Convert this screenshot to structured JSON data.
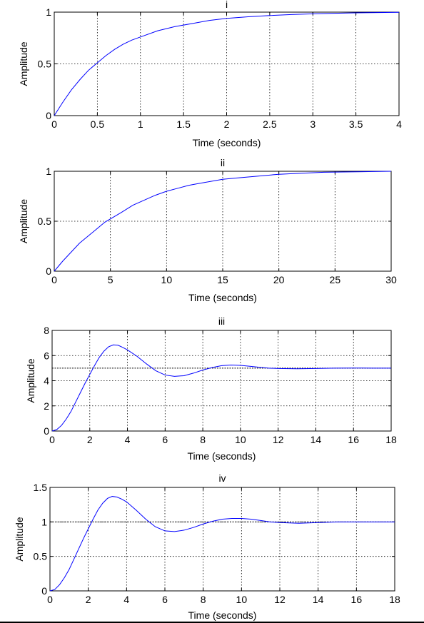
{
  "colors": {
    "curve": "#0000ff",
    "axes": "#000000",
    "grid": "#000000",
    "background": "#ffffff"
  },
  "chart_data": [
    {
      "type": "line",
      "title": "i",
      "xlabel": "Time (seconds)",
      "ylabel": "Amplitude",
      "xlim": [
        0,
        4
      ],
      "ylim": [
        0,
        1
      ],
      "xticks": [
        0,
        0.5,
        1,
        1.5,
        2,
        2.5,
        3,
        3.5,
        4
      ],
      "xtick_labels": [
        "0",
        "0.5",
        "1",
        "1.5",
        "2",
        "2.5",
        "3",
        "3.5",
        "4"
      ],
      "yticks": [
        0,
        0.5,
        1
      ],
      "ytick_labels": [
        "0",
        "0.5",
        "1"
      ],
      "grid": true,
      "series": [
        {
          "x": [
            0,
            0.1,
            0.2,
            0.3,
            0.4,
            0.5,
            0.6,
            0.7,
            0.8,
            0.9,
            1.0,
            1.2,
            1.4,
            1.6,
            1.8,
            2.0,
            2.25,
            2.5,
            2.75,
            3.0,
            3.25,
            3.5,
            3.75,
            4.0
          ],
          "y": [
            0,
            0.13,
            0.25,
            0.35,
            0.44,
            0.51,
            0.58,
            0.64,
            0.69,
            0.73,
            0.76,
            0.82,
            0.86,
            0.89,
            0.92,
            0.94,
            0.955,
            0.967,
            0.977,
            0.984,
            0.989,
            0.993,
            0.996,
            0.998
          ]
        }
      ]
    },
    {
      "type": "line",
      "title": "ii",
      "xlabel": "Time (seconds)",
      "ylabel": "Amplitude",
      "xlim": [
        0,
        30
      ],
      "ylim": [
        0,
        1
      ],
      "xticks": [
        0,
        5,
        10,
        15,
        20,
        25,
        30
      ],
      "xtick_labels": [
        "0",
        "5",
        "10",
        "15",
        "20",
        "25",
        "30"
      ],
      "yticks": [
        0,
        0.5,
        1
      ],
      "ytick_labels": [
        "0",
        "0.5",
        "1"
      ],
      "grid": true,
      "series": [
        {
          "x": [
            0,
            0.75,
            1.5,
            2.25,
            3,
            3.75,
            4.5,
            5.25,
            6,
            7,
            8,
            9,
            10,
            11,
            12,
            13,
            14,
            15,
            16,
            18,
            20,
            22,
            24,
            30
          ],
          "y": [
            0,
            0.1,
            0.19,
            0.28,
            0.35,
            0.42,
            0.49,
            0.54,
            0.59,
            0.66,
            0.71,
            0.76,
            0.8,
            0.83,
            0.86,
            0.88,
            0.9,
            0.92,
            0.93,
            0.95,
            0.97,
            0.98,
            0.99,
            1.0
          ]
        }
      ]
    },
    {
      "type": "line",
      "title": "iii",
      "xlabel": "Time (seconds)",
      "ylabel": "Amplitude",
      "xlim": [
        0,
        18
      ],
      "ylim": [
        0,
        8
      ],
      "xticks": [
        0,
        2,
        4,
        6,
        8,
        10,
        12,
        14,
        16,
        18
      ],
      "xtick_labels": [
        "0",
        "2",
        "4",
        "6",
        "8",
        "10",
        "12",
        "14",
        "16",
        "18"
      ],
      "yticks": [
        0,
        2,
        4,
        6,
        8
      ],
      "ytick_labels": [
        "0",
        "2",
        "4",
        "6",
        "8"
      ],
      "grid": true,
      "reference_line": 5,
      "series": [
        {
          "x": [
            0,
            0.25,
            0.5,
            0.75,
            1.0,
            1.25,
            1.5,
            1.75,
            2.0,
            2.25,
            2.5,
            2.75,
            3.0,
            3.25,
            3.5,
            3.75,
            4.0,
            4.5,
            5.0,
            5.5,
            6.0,
            6.5,
            7.0,
            7.5,
            8.0,
            8.5,
            9.0,
            9.5,
            10.0,
            10.5,
            11.0,
            11.5,
            12.0,
            13.0,
            14.0,
            15.0,
            16.0,
            17.0,
            18.0
          ],
          "y": [
            0,
            0.12,
            0.45,
            0.95,
            1.55,
            2.3,
            3.05,
            3.8,
            4.5,
            5.2,
            5.85,
            6.35,
            6.7,
            6.85,
            6.82,
            6.65,
            6.45,
            5.95,
            5.35,
            4.8,
            4.45,
            4.35,
            4.4,
            4.6,
            4.85,
            5.05,
            5.2,
            5.25,
            5.22,
            5.15,
            5.07,
            5.0,
            4.97,
            4.95,
            4.97,
            5.0,
            5.01,
            5.0,
            5.0
          ]
        }
      ]
    },
    {
      "type": "line",
      "title": "iv",
      "xlabel": "Time (seconds)",
      "ylabel": "Amplitude",
      "xlim": [
        0,
        18
      ],
      "ylim": [
        0,
        1.5
      ],
      "xticks": [
        0,
        2,
        4,
        6,
        8,
        10,
        12,
        14,
        16,
        18
      ],
      "xtick_labels": [
        "0",
        "2",
        "4",
        "6",
        "8",
        "10",
        "12",
        "14",
        "16",
        "18"
      ],
      "yticks": [
        0,
        0.5,
        1,
        1.5
      ],
      "ytick_labels": [
        "0",
        "0.5",
        "1",
        "1.5"
      ],
      "grid": true,
      "reference_line": 1,
      "series": [
        {
          "x": [
            0,
            0.25,
            0.5,
            0.75,
            1.0,
            1.25,
            1.5,
            1.75,
            2.0,
            2.25,
            2.5,
            2.75,
            3.0,
            3.25,
            3.5,
            3.75,
            4.0,
            4.5,
            5.0,
            5.5,
            6.0,
            6.5,
            7.0,
            7.5,
            8.0,
            8.5,
            9.0,
            9.5,
            10.0,
            10.5,
            11.0,
            11.5,
            12.0,
            13.0,
            14.0,
            15.0,
            16.0,
            17.0,
            18.0
          ],
          "y": [
            0,
            0.02,
            0.09,
            0.19,
            0.31,
            0.46,
            0.61,
            0.76,
            0.9,
            1.04,
            1.17,
            1.27,
            1.34,
            1.37,
            1.36,
            1.33,
            1.29,
            1.17,
            1.04,
            0.93,
            0.87,
            0.86,
            0.88,
            0.92,
            0.97,
            1.01,
            1.04,
            1.05,
            1.05,
            1.04,
            1.02,
            1.0,
            0.99,
            0.98,
            0.99,
            1.0,
            1.0,
            1.0,
            1.0
          ]
        }
      ]
    }
  ]
}
